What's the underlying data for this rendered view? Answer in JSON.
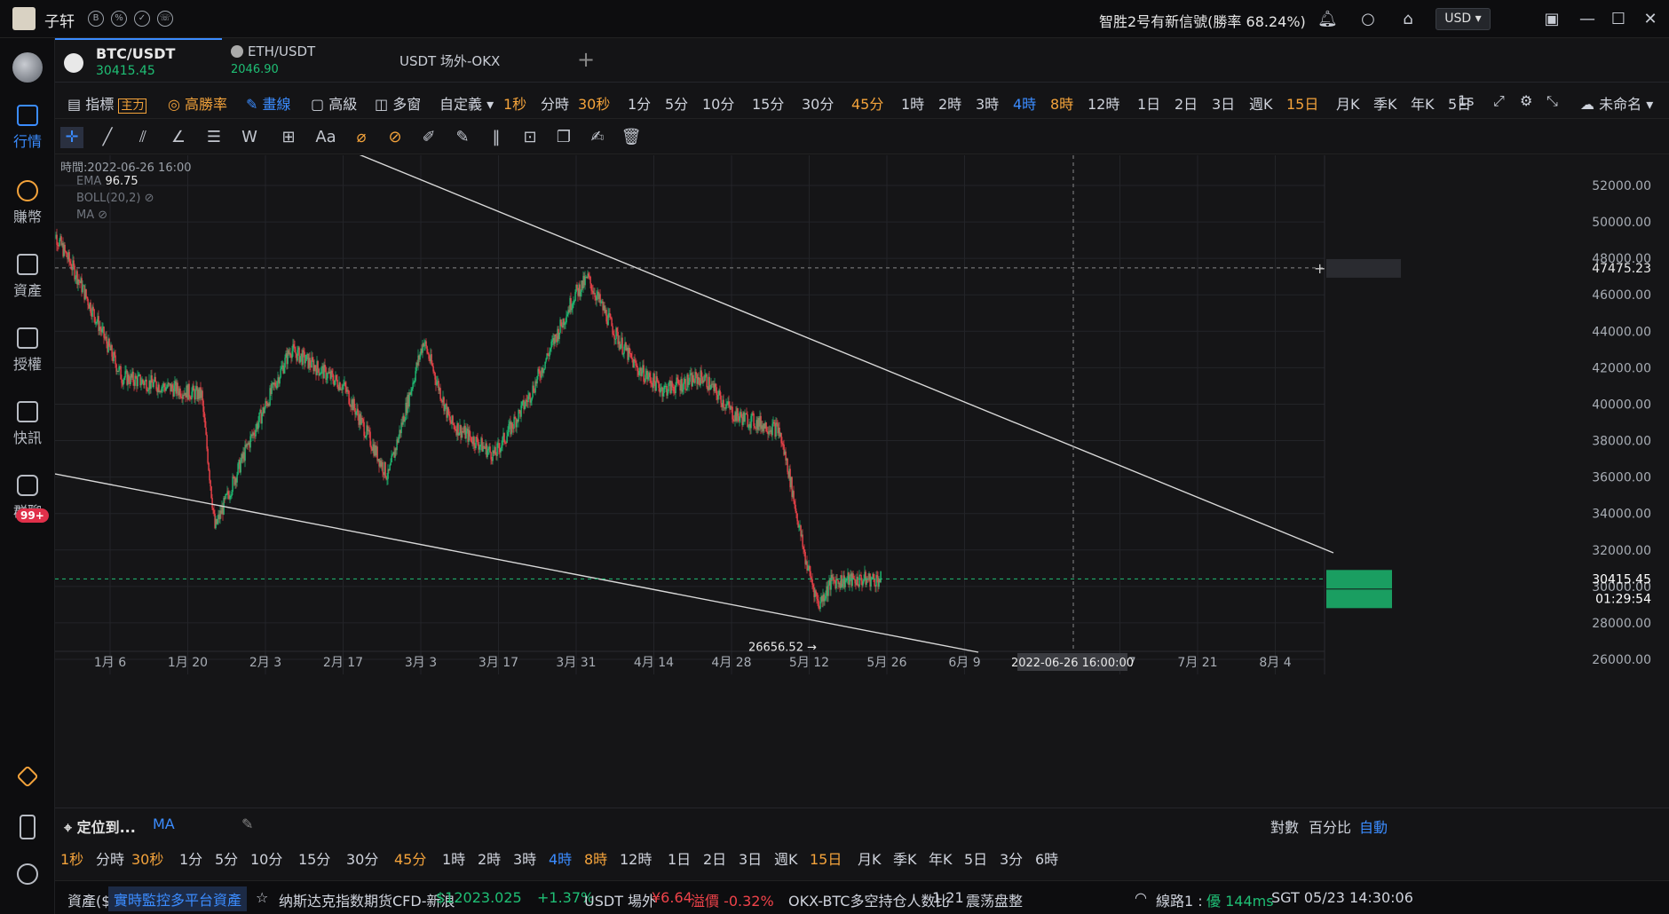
{
  "title_bar": {
    "user_name": "子轩",
    "signal_text": "智胜2号有新信號(勝率 68.24%)",
    "currency": "USD"
  },
  "sidebar": {
    "items": [
      {
        "label": "行情",
        "active": true
      },
      {
        "label": "賺幣"
      },
      {
        "label": "資產"
      },
      {
        "label": "授權"
      },
      {
        "label": "快訊"
      },
      {
        "label": "群聊",
        "badge": "99+"
      }
    ]
  },
  "tabs": [
    {
      "name": "BTC/USDT",
      "price": "30415.45",
      "active": true
    },
    {
      "name": "ETH/USDT",
      "price": "2046.90"
    },
    {
      "name": "USDT 场外-OKX"
    }
  ],
  "toolbar": {
    "indicator": "指標",
    "main_tag": "主力",
    "win_rate": "高勝率",
    "draw": "畫線",
    "advanced": "高級",
    "multi_window": "多窗",
    "custom": "自定義",
    "intervals": [
      "1秒",
      "分時",
      "30秒",
      "1分",
      "5分",
      "10分",
      "15分",
      "30分",
      "45分",
      "1時",
      "2時",
      "3時",
      "4時",
      "8時",
      "12時",
      "1日",
      "2日",
      "3日",
      "週K",
      "15日",
      "月K",
      "季K",
      "年K",
      "5日"
    ],
    "highlight_orange": [
      "1秒",
      "30秒",
      "45分",
      "8時",
      "15日"
    ],
    "active_interval": "4時",
    "right_interval": "1s",
    "layout_name": "未命名"
  },
  "chart": {
    "crosshair_time": "時間:2022-06-26 16:00",
    "indicators": [
      "EMA",
      "BOLL(20,2)",
      "MA"
    ],
    "ema_value": "96.75",
    "y_ticks": [
      "52000.00",
      "50000.00",
      "48000.00",
      "46000.00",
      "44000.00",
      "42000.00",
      "40000.00",
      "38000.00",
      "36000.00",
      "34000.00",
      "32000.00",
      "30000.00",
      "28000.00",
      "26000.00"
    ],
    "x_ticks": [
      "1月 6",
      "1月 20",
      "2月 3",
      "2月 17",
      "3月 3",
      "3月 17",
      "3月 31",
      "4月 14",
      "4月 28",
      "5月 12",
      "5月 26",
      "6月 9",
      "7月 7",
      "7月 21",
      "8月 4"
    ],
    "crosshair_price": "47475.23",
    "crosshair_date": "2022-06-26 16:00:00",
    "last_price": "30415.45",
    "countdown": "01:29:54",
    "low_label": "26656.52",
    "colors": {
      "up": "#1fbf75",
      "down": "#f0434a",
      "accent": "#3b8cff",
      "highlight": "#f4a33b"
    }
  },
  "bottom": {
    "locate": "定位到...",
    "ma": "MA",
    "scale_options": [
      "對數",
      "百分比",
      "自動"
    ],
    "intervals": [
      "1秒",
      "分時",
      "30秒",
      "1分",
      "5分",
      "10分",
      "15分",
      "30分",
      "45分",
      "1時",
      "2時",
      "3時",
      "4時",
      "8時",
      "12時",
      "1日",
      "2日",
      "3日",
      "週K",
      "15日",
      "月K",
      "季K",
      "年K",
      "5日",
      "3分",
      "6時"
    ]
  },
  "status": {
    "assets": "資產($)",
    "monitor": "實時監控多平台資產",
    "ticker_name": "纳斯达克指数期货CFD-新浪",
    "ticker_price": "$12023.025",
    "ticker_change": "+1.37%",
    "otc_label": "USDT 場外",
    "otc_price": "¥6.64",
    "otc_premium": "溢價 -0.32%",
    "ratio_label": "OKX-BTC多空持仓人数比",
    "ratio_value": "1.21",
    "ratio_state": "震荡盘整",
    "line": "線路1 :",
    "line_quality": "優 144ms",
    "clock": "SGT  05/23 14:30:06"
  }
}
